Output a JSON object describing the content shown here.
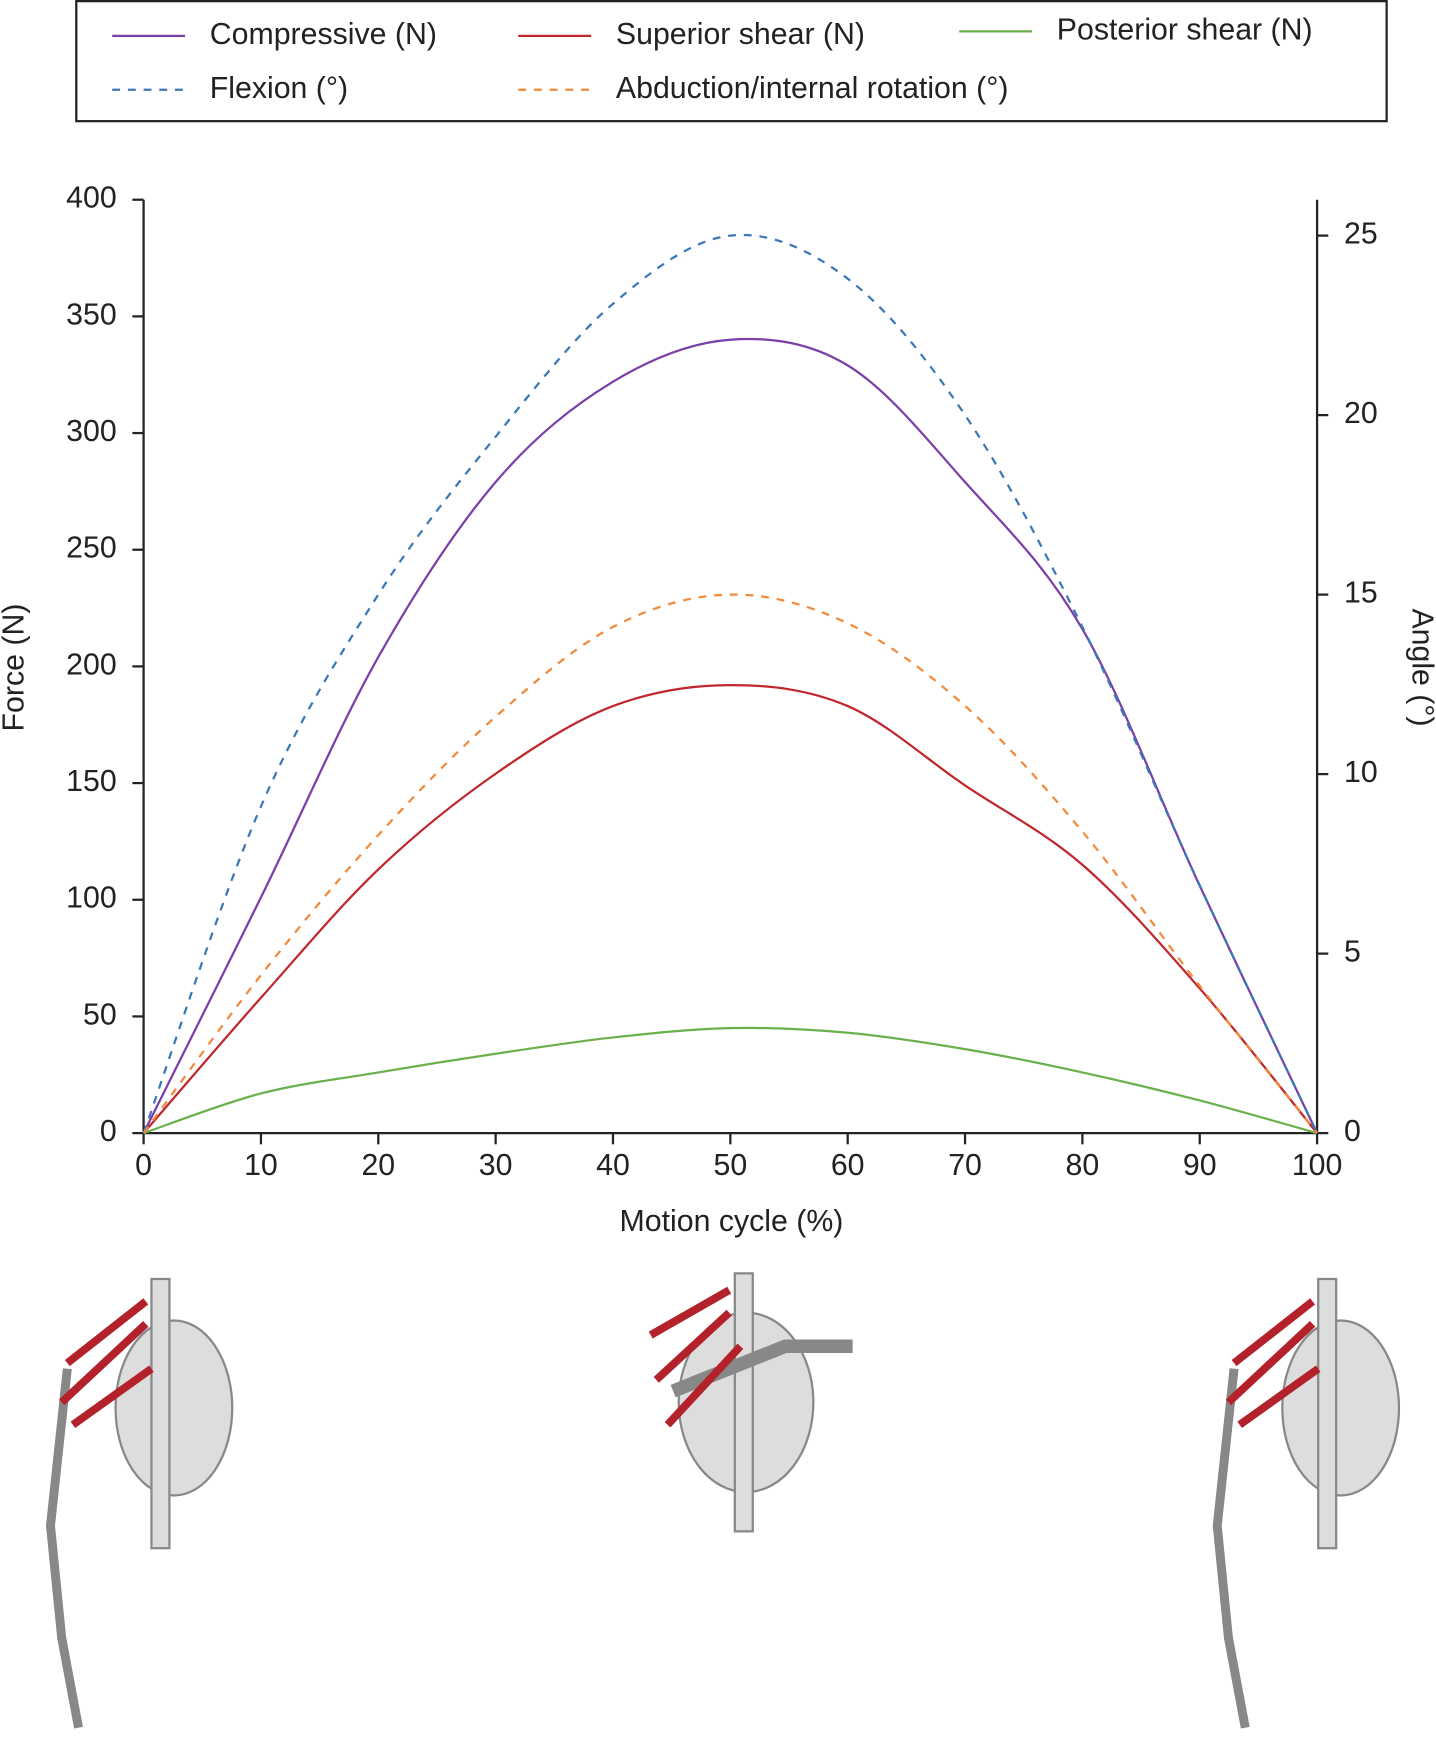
{
  "chart_data": {
    "type": "line",
    "x": [
      0,
      10,
      20,
      30,
      40,
      50,
      60,
      70,
      80,
      90,
      100
    ],
    "series": [
      {
        "name": "Compressive (N)",
        "color": "#7b3fa8",
        "style": "solid",
        "axis": "y",
        "values": [
          0,
          101,
          204,
          279,
          322,
          340,
          329,
          279,
          216,
          106,
          0
        ]
      },
      {
        "name": "Superior shear (N)",
        "color": "#c0272d",
        "style": "solid",
        "axis": "y",
        "values": [
          0,
          58,
          113,
          154,
          183,
          192,
          183,
          149,
          115,
          62,
          0
        ]
      },
      {
        "name": "Posterior shear (N)",
        "color": "#6ab04c",
        "style": "solid",
        "axis": "y",
        "values": [
          0,
          17,
          26,
          34,
          41,
          45,
          43,
          36,
          26,
          14,
          0
        ]
      },
      {
        "name": "Flexion (°)",
        "color": "#3a78b8",
        "style": "dashed",
        "axis": "y2",
        "values": [
          0,
          9.1,
          15,
          19.4,
          23.1,
          25,
          23.8,
          20,
          14.1,
          6.9,
          0
        ]
      },
      {
        "name": "Abduction/internal rotation (°)",
        "color": "#f08a3c",
        "style": "dashed",
        "axis": "y2",
        "values": [
          0,
          4.4,
          8.3,
          11.6,
          14.1,
          15,
          14.2,
          11.9,
          8.4,
          4.1,
          0
        ]
      }
    ],
    "xlabel": "Motion cycle (%)",
    "ylabel": "Force (N)",
    "y2label": "Angle (°)",
    "xlim": [
      0,
      100
    ],
    "xticks": [
      0,
      10,
      20,
      30,
      40,
      50,
      60,
      70,
      80,
      90,
      100
    ],
    "ylim": [
      0,
      400
    ],
    "yticks": [
      0,
      50,
      100,
      150,
      200,
      250,
      300,
      350,
      400
    ],
    "y2lim": [
      0,
      26
    ],
    "y2ticks": [
      0,
      5,
      10,
      15,
      20,
      25
    ],
    "legend": "top"
  }
}
